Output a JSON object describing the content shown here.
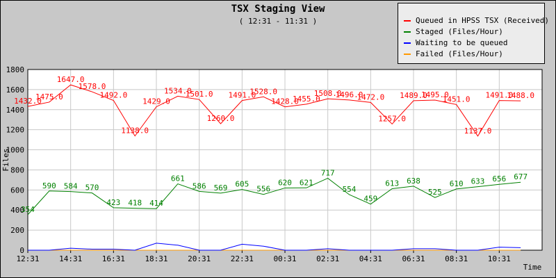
{
  "chart_data": {
    "type": "line",
    "title": "TSX Staging View",
    "subtitle": "( 12:31 - 11:31 )",
    "ylabel": "Files",
    "xlabel": "Time",
    "ylim": [
      0,
      1800
    ],
    "yticks": [
      "0",
      "200",
      "400",
      "600",
      "800",
      "1000",
      "1200",
      "1400",
      "1600",
      "1800"
    ],
    "xtick_labels": [
      "12:31",
      "14:31",
      "16:31",
      "18:31",
      "20:31",
      "22:31",
      "00:31",
      "02:31",
      "04:31",
      "06:31",
      "08:31",
      "10:31"
    ],
    "grid": true,
    "legend_position": "top-right",
    "series": [
      {
        "name": "Queued in HPSS TSX (Received)",
        "color": "#ff0000",
        "labels": [
          "1432.0",
          "1475.0",
          "1647.0",
          "1578.0",
          "1492.0",
          "1138.0",
          "1429.0",
          "1534.0",
          "1501.0",
          "1260.0",
          "1491.0",
          "1528.0",
          "1428.0",
          "1455.0",
          "1508.0",
          "1496.0",
          "1472.0",
          "1257.0",
          "1489.0",
          "1495.0",
          "1451.0",
          "1137.0",
          "1491.0",
          "1488.0"
        ],
        "values": [
          1432,
          1475,
          1647,
          1578,
          1492,
          1138,
          1429,
          1534,
          1501,
          1260,
          1491,
          1528,
          1428,
          1455,
          1508,
          1496,
          1472,
          1257,
          1489,
          1495,
          1451,
          1137,
          1491,
          1488
        ]
      },
      {
        "name": "Staged (Files/Hour)",
        "color": "#008000",
        "labels": [
          "354",
          "590",
          "584",
          "570",
          "423",
          "418",
          "414",
          "661",
          "586",
          "569",
          "605",
          "556",
          "620",
          "621",
          "717",
          "554",
          "459",
          "613",
          "638",
          "525",
          "610",
          "633",
          "656",
          "677"
        ],
        "values": [
          354,
          590,
          584,
          570,
          423,
          418,
          414,
          661,
          586,
          569,
          605,
          556,
          620,
          621,
          717,
          554,
          459,
          613,
          638,
          525,
          610,
          633,
          656,
          677
        ]
      },
      {
        "name": "Waiting to be queued",
        "color": "#0000ff",
        "labels": [],
        "values": [
          0,
          0,
          20,
          10,
          10,
          0,
          70,
          50,
          0,
          0,
          60,
          40,
          0,
          0,
          15,
          0,
          0,
          0,
          15,
          15,
          0,
          0,
          30,
          25
        ]
      },
      {
        "name": "Failed (Files/Hour)",
        "color": "#ff9900",
        "labels": [],
        "values": [
          0,
          0,
          0,
          0,
          0,
          0,
          0,
          0,
          0,
          0,
          0,
          0,
          0,
          0,
          0,
          0,
          0,
          0,
          0,
          0,
          0,
          0,
          0,
          0
        ]
      }
    ]
  }
}
